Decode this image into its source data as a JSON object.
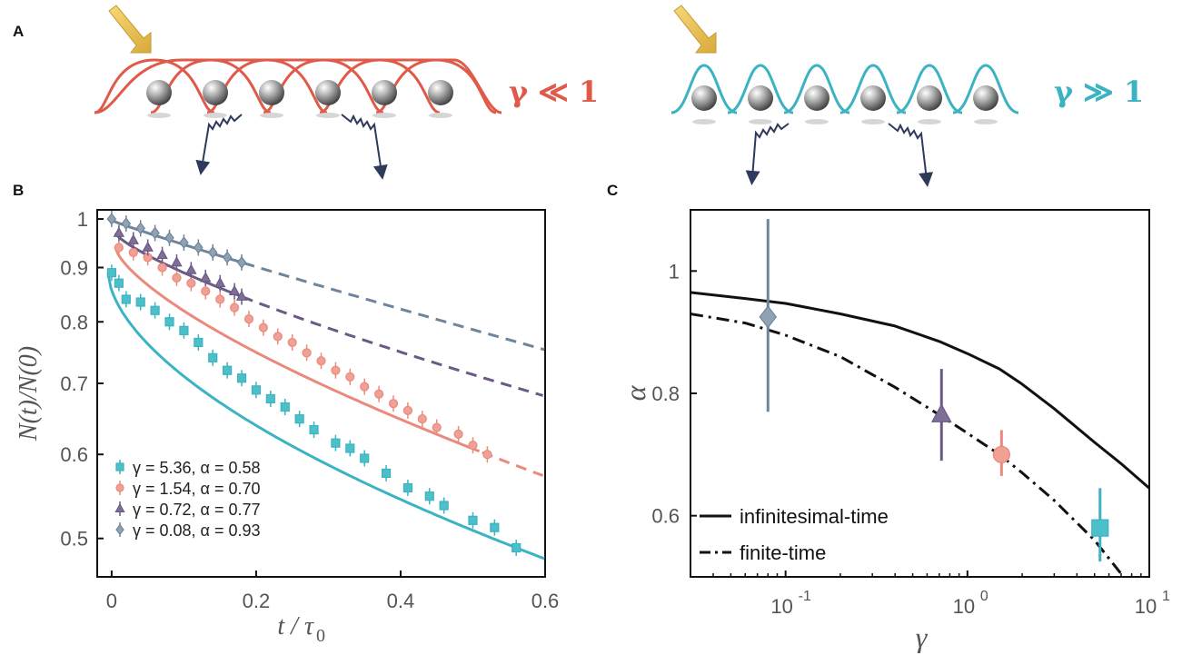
{
  "panels": {
    "a": "A",
    "b": "B",
    "c": "C"
  },
  "schematic": {
    "left_label": "γ ≪ 1",
    "right_label": "γ ≫ 1",
    "left_color": "#e05a4a",
    "right_color": "#3bb3c3",
    "atoms_per_row": 6
  },
  "colors": {
    "cyan": "#4dbfc9",
    "salmon": "#f0a094",
    "salmon_line": "#ea8a7c",
    "purple": "#7d6f96",
    "purple_line": "#6b5a86",
    "slate": "#8fa3b4",
    "slate_line": "#6f859b",
    "black": "#111111"
  },
  "chart_data": [
    {
      "panel": "B",
      "type": "scatter",
      "xlabel": "t / τ",
      "xlabel_sub": "0",
      "ylabel": "N(t)/N(0)",
      "xlim": [
        -0.02,
        0.6
      ],
      "ylim": [
        0.46,
        1.02
      ],
      "yscale": "log",
      "xticks": [
        "0",
        "0.2",
        "0.4",
        "0.6"
      ],
      "xtick_values": [
        0,
        0.2,
        0.4,
        0.6
      ],
      "yticks": [
        "1",
        "0.9",
        "0.8",
        "0.7",
        "0.6",
        "0.5"
      ],
      "ytick_values": [
        1,
        0.9,
        0.8,
        0.7,
        0.6,
        0.5
      ],
      "legend": "bottom-left",
      "series": [
        {
          "name": "γ = 5.36, α = 0.58",
          "marker": "square",
          "color_key": "cyan",
          "points": [
            [
              0.0,
              0.89
            ],
            [
              0.01,
              0.87
            ],
            [
              0.02,
              0.84
            ],
            [
              0.04,
              0.835
            ],
            [
              0.06,
              0.82
            ],
            [
              0.08,
              0.8
            ],
            [
              0.1,
              0.785
            ],
            [
              0.12,
              0.765
            ],
            [
              0.14,
              0.74
            ],
            [
              0.16,
              0.72
            ],
            [
              0.18,
              0.708
            ],
            [
              0.2,
              0.69
            ],
            [
              0.22,
              0.677
            ],
            [
              0.24,
              0.665
            ],
            [
              0.26,
              0.648
            ],
            [
              0.28,
              0.633
            ],
            [
              0.31,
              0.615
            ],
            [
              0.33,
              0.608
            ],
            [
              0.35,
              0.595
            ],
            [
              0.38,
              0.576
            ],
            [
              0.41,
              0.558
            ],
            [
              0.44,
              0.548
            ],
            [
              0.46,
              0.537
            ],
            [
              0.5,
              0.52
            ],
            [
              0.53,
              0.512
            ],
            [
              0.56,
              0.49
            ]
          ],
          "fit": {
            "a": 0.111,
            "t0": 0.0,
            "b": 0.0,
            "solid_to": 0.6
          }
        },
        {
          "name": "γ = 1.54, α = 0.70",
          "marker": "circle",
          "color_key": "salmon",
          "points": [
            [
              0.01,
              0.94
            ],
            [
              0.03,
              0.93
            ],
            [
              0.05,
              0.92
            ],
            [
              0.07,
              0.9
            ],
            [
              0.09,
              0.88
            ],
            [
              0.11,
              0.87
            ],
            [
              0.13,
              0.855
            ],
            [
              0.15,
              0.84
            ],
            [
              0.17,
              0.825
            ],
            [
              0.19,
              0.805
            ],
            [
              0.21,
              0.79
            ],
            [
              0.23,
              0.775
            ],
            [
              0.25,
              0.765
            ],
            [
              0.27,
              0.748
            ],
            [
              0.29,
              0.735
            ],
            [
              0.31,
              0.72
            ],
            [
              0.33,
              0.71
            ],
            [
              0.35,
              0.695
            ],
            [
              0.37,
              0.684
            ],
            [
              0.39,
              0.67
            ],
            [
              0.41,
              0.66
            ],
            [
              0.43,
              0.648
            ],
            [
              0.45,
              0.636
            ],
            [
              0.48,
              0.627
            ],
            [
              0.5,
              0.612
            ],
            [
              0.52,
              0.6
            ]
          ],
          "fit": {
            "a": 0.111,
            "t0": 0.0,
            "b": 0.0,
            "solid_to": 0.51
          }
        },
        {
          "name": "γ = 0.72, α = 0.77",
          "marker": "triangle",
          "color_key": "purple",
          "points": [
            [
              0.01,
              0.97
            ],
            [
              0.03,
              0.955
            ],
            [
              0.05,
              0.94
            ],
            [
              0.07,
              0.925
            ],
            [
              0.09,
              0.91
            ],
            [
              0.11,
              0.895
            ],
            [
              0.13,
              0.88
            ],
            [
              0.15,
              0.87
            ],
            [
              0.17,
              0.855
            ],
            [
              0.18,
              0.845
            ]
          ],
          "fit": {
            "a": 0.111,
            "t0": 0.0,
            "b": 0.0,
            "solid_to": 0.18
          }
        },
        {
          "name": "γ = 0.08, α = 0.93",
          "marker": "diamond",
          "color_key": "slate",
          "points": [
            [
              0.0,
              1.0
            ],
            [
              0.02,
              0.99
            ],
            [
              0.04,
              0.98
            ],
            [
              0.06,
              0.97
            ],
            [
              0.08,
              0.96
            ],
            [
              0.1,
              0.95
            ],
            [
              0.12,
              0.94
            ],
            [
              0.14,
              0.93
            ],
            [
              0.16,
              0.92
            ],
            [
              0.18,
              0.91
            ]
          ],
          "fit": {
            "a": 0.111,
            "t0": 0.0,
            "b": 0.0,
            "solid_to": 0.18
          }
        }
      ]
    },
    {
      "panel": "C",
      "type": "line",
      "xlabel": "γ",
      "ylabel": "α",
      "xscale": "log",
      "xlim": [
        0.03,
        10
      ],
      "ylim": [
        0.5,
        1.1
      ],
      "xticks": [
        {
          "base": "10",
          "exp": "-1"
        },
        {
          "base": "10",
          "exp": "0"
        },
        {
          "base": "10",
          "exp": "1"
        }
      ],
      "xtick_values": [
        0.1,
        1,
        10
      ],
      "yticks": [
        "0.6",
        "0.8",
        "1"
      ],
      "ytick_values": [
        0.6,
        0.8,
        1.0
      ],
      "legend": "bottom-left",
      "lines": [
        {
          "name": "infinitesimal-time",
          "style": "solid",
          "x": [
            0.03,
            0.06,
            0.1,
            0.2,
            0.4,
            0.7,
            1,
            1.5,
            2,
            3,
            5,
            7,
            10
          ],
          "y": [
            0.965,
            0.955,
            0.947,
            0.93,
            0.91,
            0.885,
            0.865,
            0.84,
            0.815,
            0.775,
            0.72,
            0.685,
            0.645
          ]
        },
        {
          "name": "finite-time",
          "style": "dashdot",
          "x": [
            0.03,
            0.06,
            0.1,
            0.2,
            0.4,
            0.7,
            1,
            1.5,
            2,
            3,
            5,
            7
          ],
          "y": [
            0.93,
            0.915,
            0.895,
            0.86,
            0.81,
            0.765,
            0.735,
            0.7,
            0.67,
            0.625,
            0.56,
            0.505
          ]
        }
      ],
      "points": [
        {
          "x": 0.08,
          "y": 0.925,
          "err": [
            0.77,
            1.085
          ],
          "marker": "diamond",
          "color_key": "slate"
        },
        {
          "x": 0.72,
          "y": 0.765,
          "err": [
            0.69,
            0.84
          ],
          "marker": "triangle",
          "color_key": "purple"
        },
        {
          "x": 1.54,
          "y": 0.7,
          "err": [
            0.665,
            0.74
          ],
          "marker": "circle",
          "color_key": "salmon"
        },
        {
          "x": 5.36,
          "y": 0.58,
          "err": [
            0.525,
            0.645
          ],
          "marker": "square",
          "color_key": "cyan"
        }
      ]
    }
  ]
}
